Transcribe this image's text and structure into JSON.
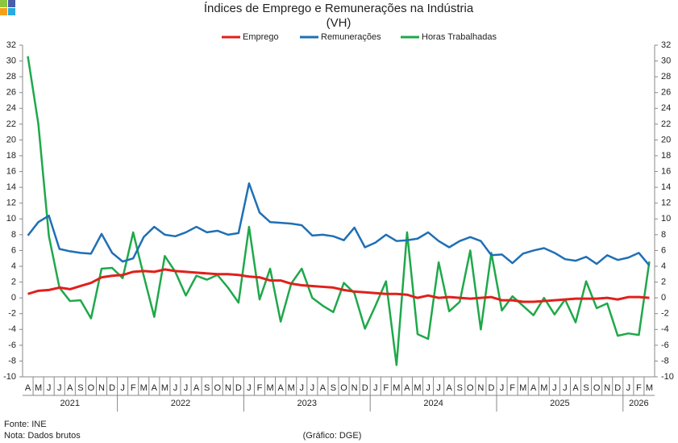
{
  "chart_data": {
    "type": "line",
    "title": "Índices de Emprego e Remunerações na Indústria",
    "subtitle": "(VH)",
    "categories": [
      "A",
      "M",
      "J",
      "J",
      "A",
      "S",
      "O",
      "N",
      "D",
      "J",
      "F",
      "M",
      "A",
      "M",
      "J",
      "J",
      "A",
      "S",
      "O",
      "N",
      "D",
      "J",
      "F",
      "M",
      "A",
      "M",
      "J",
      "J",
      "A",
      "S",
      "O",
      "N",
      "D",
      "J",
      "F",
      "M",
      "A",
      "M",
      "J",
      "J",
      "A",
      "S",
      "O",
      "N",
      "D",
      "J",
      "F",
      "M",
      "A",
      "M",
      "J",
      "J",
      "A",
      "S",
      "O",
      "N",
      "D",
      "J",
      "F",
      "M"
    ],
    "years": [
      "2021",
      "2021",
      "2021",
      "2021",
      "2021",
      "2021",
      "2021",
      "2021",
      "2021",
      "2022",
      "2022",
      "2022",
      "2022",
      "2022",
      "2022",
      "2022",
      "2022",
      "2022",
      "2022",
      "2022",
      "2022",
      "2023",
      "2023",
      "2023",
      "2023",
      "2023",
      "2023",
      "2023",
      "2023",
      "2023",
      "2023",
      "2023",
      "2023",
      "2024",
      "2024",
      "2024",
      "2024",
      "2024",
      "2024",
      "2024",
      "2024",
      "2024",
      "2024",
      "2024",
      "2024",
      "2025",
      "2025",
      "2025",
      "2025",
      "2025",
      "2025",
      "2025",
      "2025",
      "2025",
      "2025",
      "2025",
      "2025",
      "2026",
      "2026",
      "2026"
    ],
    "series": [
      {
        "name": "Emprego",
        "color": "#e0201b",
        "values": [
          0.5,
          0.9,
          1.0,
          1.3,
          1.1,
          1.5,
          1.9,
          2.6,
          2.8,
          2.9,
          3.3,
          3.4,
          3.3,
          3.6,
          3.4,
          3.3,
          3.2,
          3.1,
          3.0,
          3.0,
          2.9,
          2.7,
          2.6,
          2.2,
          2.2,
          1.8,
          1.6,
          1.5,
          1.4,
          1.3,
          1.0,
          0.8,
          0.7,
          0.6,
          0.5,
          0.5,
          0.4,
          0.0,
          0.3,
          0.0,
          0.1,
          0.0,
          -0.1,
          0.0,
          0.1,
          -0.3,
          -0.3,
          -0.5,
          -0.5,
          -0.4,
          -0.3,
          -0.2,
          -0.1,
          -0.1,
          -0.1,
          0.0,
          -0.2,
          0.1,
          0.1,
          0.0
        ]
      },
      {
        "name": "Remunerações",
        "color": "#1f6fb5",
        "values": [
          7.9,
          9.6,
          10.4,
          6.2,
          5.9,
          5.7,
          5.6,
          8.1,
          5.7,
          4.6,
          5.0,
          7.7,
          9.0,
          8.0,
          7.8,
          8.3,
          9.0,
          8.3,
          8.5,
          8.0,
          8.2,
          14.5,
          10.8,
          9.6,
          9.5,
          9.4,
          9.2,
          7.9,
          8.0,
          7.8,
          7.3,
          8.9,
          6.4,
          7.0,
          8.0,
          7.2,
          7.3,
          7.5,
          8.3,
          7.2,
          6.4,
          7.2,
          7.7,
          7.2,
          5.4,
          5.5,
          4.4,
          5.6,
          6.0,
          6.3,
          5.7,
          4.9,
          4.7,
          5.2,
          4.3,
          5.4,
          4.8,
          5.1,
          5.7,
          4.1
        ]
      },
      {
        "name": "Horas Trabalhadas",
        "color": "#1fa84a",
        "values": [
          30.6,
          22,
          7.8,
          1.3,
          -0.4,
          -0.3,
          -2.6,
          3.7,
          3.8,
          2.5,
          8.3,
          2.8,
          -2.4,
          5.3,
          3.3,
          0.3,
          2.8,
          2.3,
          2.9,
          1.3,
          -0.6,
          9.0,
          -0.2,
          3.7,
          -3.0,
          1.8,
          3.7,
          0.0,
          -1.0,
          -1.8,
          1.9,
          0.6,
          -3.9,
          -1.0,
          2.1,
          -8.5,
          8.3,
          -4.6,
          -5.2,
          4.5,
          -1.7,
          -0.5,
          6.0,
          -4.0,
          5.7,
          -1.6,
          0.2,
          -1.0,
          -2.2,
          0.0,
          -2.1,
          -0.2,
          -3.1,
          2.1,
          -1.3,
          -0.7,
          -4.8,
          -4.5,
          -4.7,
          4.6
        ]
      }
    ],
    "ylim": [
      -10,
      32
    ],
    "yticks": [
      -10,
      -8,
      -6,
      -4,
      -2,
      0,
      2,
      4,
      6,
      8,
      10,
      12,
      14,
      16,
      18,
      20,
      22,
      24,
      26,
      28,
      30,
      32
    ],
    "y2lim": [
      -10,
      32
    ],
    "y2ticks": [
      -10,
      -8,
      -6,
      -4,
      -2,
      0,
      2,
      4,
      6,
      8,
      10,
      12,
      14,
      16,
      18,
      20,
      22,
      24,
      26,
      28,
      30,
      32
    ],
    "grid": false,
    "legend": "top",
    "source": "Fonte: INE",
    "note": "Nota: Dados brutos",
    "credit": "(Gráfico: DGE)"
  }
}
